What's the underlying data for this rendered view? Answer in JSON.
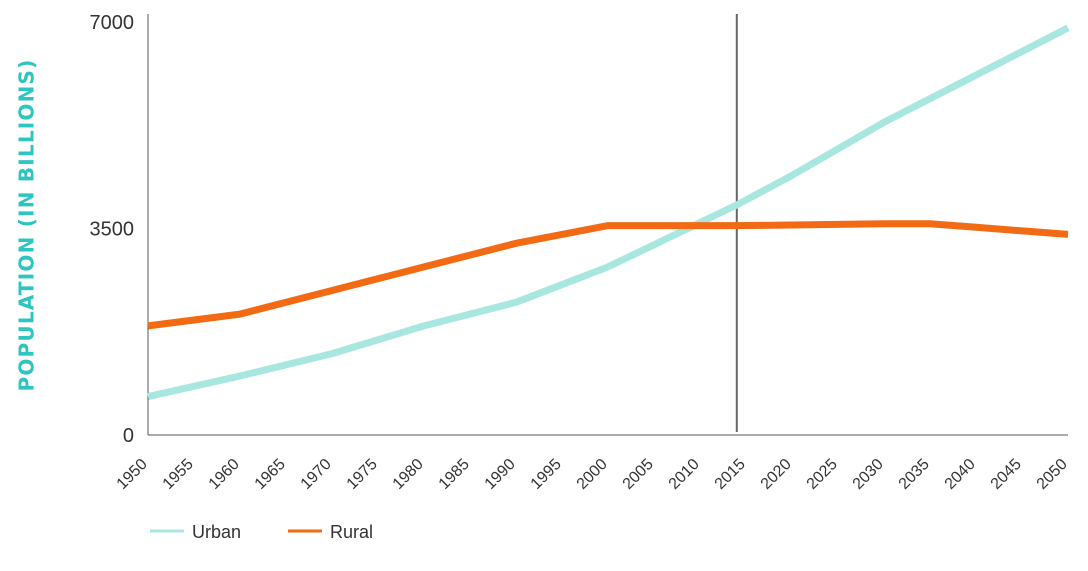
{
  "chart_data": {
    "type": "line",
    "title": "",
    "xlabel": "",
    "ylabel": "POPULATION (IN BILLIONS)",
    "x": [
      1950,
      1955,
      1960,
      1965,
      1970,
      1975,
      1980,
      1985,
      1990,
      1995,
      2000,
      2005,
      2010,
      2015,
      2020,
      2025,
      2030,
      2035,
      2040,
      2045,
      2050
    ],
    "xlim": [
      1950,
      2050
    ],
    "ylim": [
      0,
      7000
    ],
    "yticks": [
      "0",
      "3500",
      "7000"
    ],
    "xticks": [
      "1950",
      "1955",
      "1960",
      "1965",
      "1970",
      "1975",
      "1980",
      "1985",
      "1990",
      "1995",
      "2000",
      "2005",
      "2010",
      "2015",
      "2020",
      "2025",
      "2030",
      "2035",
      "2040",
      "2045",
      "2050"
    ],
    "reference_line_x": 2014,
    "grid": false,
    "legend_position": "bottom-left",
    "series": [
      {
        "name": "Urban",
        "color": "#a8e6e0",
        "x": [
          1950,
          1960,
          1970,
          1980,
          1990,
          2000,
          2010,
          2014,
          2020,
          2030,
          2040,
          2050
        ],
        "values": [
          650,
          1000,
          1380,
          1850,
          2250,
          2850,
          3600,
          3900,
          4400,
          5300,
          6100,
          6900
        ]
      },
      {
        "name": "Rural",
        "color": "#f26a13",
        "x": [
          1950,
          1960,
          1970,
          1980,
          1990,
          2000,
          2010,
          2014,
          2020,
          2030,
          2035,
          2040,
          2050
        ],
        "values": [
          1850,
          2050,
          2450,
          2850,
          3250,
          3550,
          3550,
          3550,
          3560,
          3580,
          3580,
          3520,
          3400
        ]
      }
    ]
  }
}
